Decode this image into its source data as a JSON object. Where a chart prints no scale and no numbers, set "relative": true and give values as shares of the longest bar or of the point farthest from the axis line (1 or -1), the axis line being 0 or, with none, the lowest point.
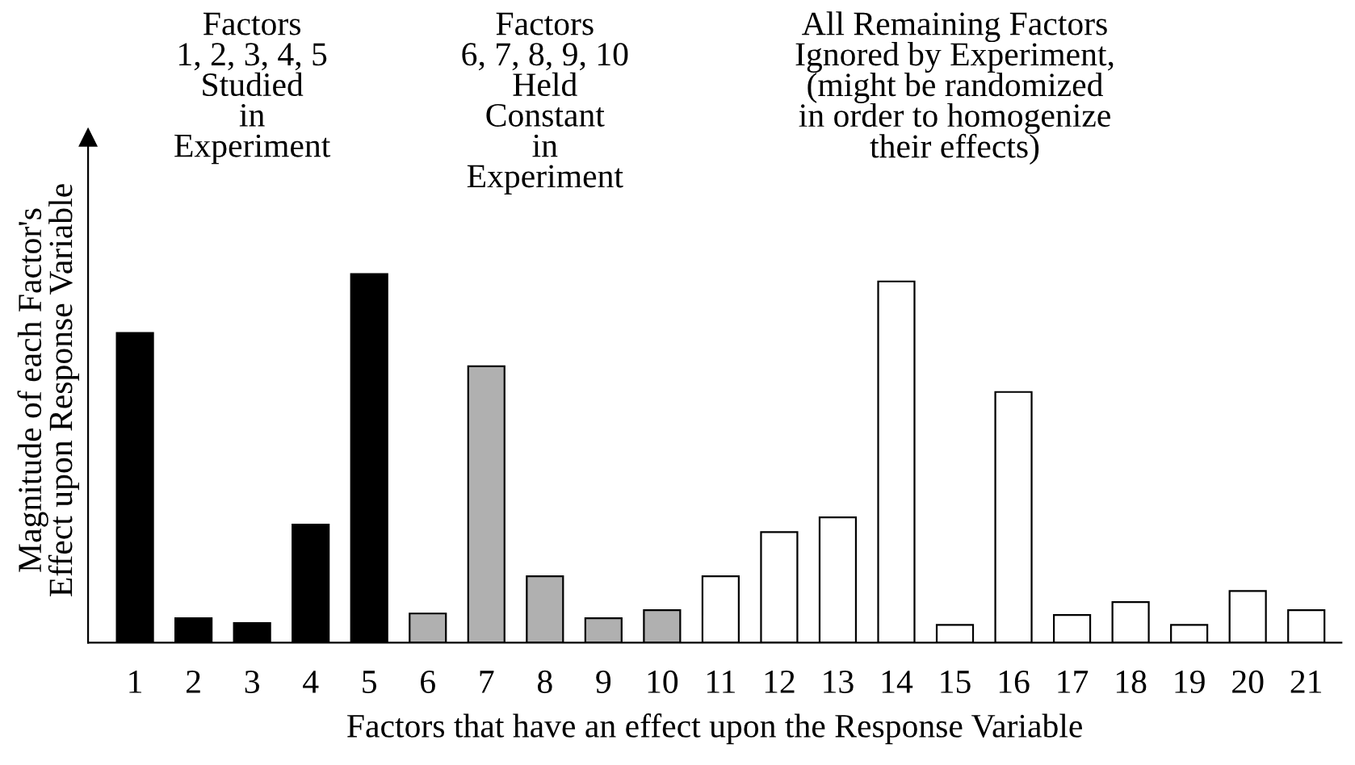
{
  "chart_data": {
    "type": "bar",
    "relative": true,
    "categories": [
      "1",
      "2",
      "3",
      "4",
      "5",
      "6",
      "7",
      "8",
      "9",
      "10",
      "11",
      "12",
      "13",
      "14",
      "15",
      "16",
      "17",
      "18",
      "19",
      "20",
      "21"
    ],
    "values": [
      0.84,
      0.066,
      0.053,
      0.32,
      1,
      0.079,
      0.75,
      0.18,
      0.066,
      0.088,
      0.18,
      0.3,
      0.34,
      0.98,
      0.048,
      0.68,
      0.075,
      0.11,
      0.048,
      0.14,
      0.088
    ],
    "colors": [
      "#000000",
      "#000000",
      "#000000",
      "#000000",
      "#000000",
      "#b0b0b0",
      "#b0b0b0",
      "#b0b0b0",
      "#b0b0b0",
      "#b0b0b0",
      "#ffffff",
      "#ffffff",
      "#ffffff",
      "#ffffff",
      "#ffffff",
      "#ffffff",
      "#ffffff",
      "#ffffff",
      "#ffffff",
      "#ffffff",
      "#ffffff"
    ],
    "xlabel": "Factors that have an effect upon the Response Variable",
    "ylabel": "Magnitude of each Factor's\nEffect upon Response Variable",
    "annotations": [
      "Factors\n1, 2, 3, 4, 5\nStudied\nin\nExperiment",
      "Factors\n6, 7, 8, 9, 10\nHeld\nConstant\nin\nExperiment",
      "All Remaining Factors\nIgnored by Experiment,\n(might be randomized\nin order to homogenize\ntheir effects)"
    ]
  }
}
